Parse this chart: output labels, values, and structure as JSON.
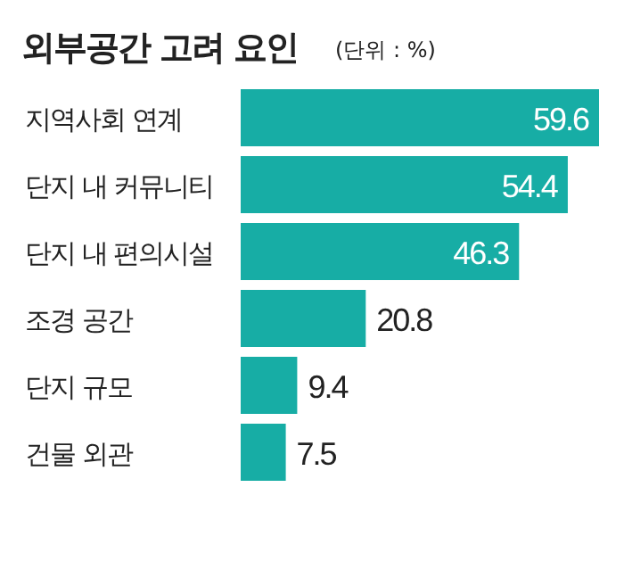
{
  "chart_data": {
    "type": "bar",
    "orientation": "horizontal",
    "title": "외부공간 고려 요인",
    "subtitle": "(단위 : %)",
    "categories": [
      "지역사회 연계",
      "단지 내 커뮤니티",
      "단지 내 편의시설",
      "조경 공간",
      "단지 규모",
      "건물 외관"
    ],
    "values": [
      59.6,
      54.4,
      46.3,
      20.8,
      9.4,
      7.5
    ],
    "color": "#17ada5",
    "data_labels": true
  }
}
